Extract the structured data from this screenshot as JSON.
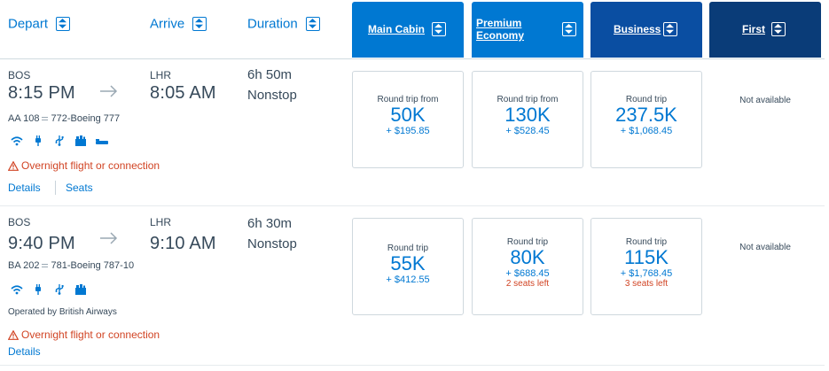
{
  "header": {
    "depart": "Depart",
    "arrive": "Arrive",
    "duration": "Duration",
    "cabins": [
      {
        "label": "Main Cabin",
        "color": "#0078d2"
      },
      {
        "label": "Premium Economy",
        "color": "#0078d2"
      },
      {
        "label": "Business",
        "color": "#0a4ea2"
      },
      {
        "label": "First",
        "color": "#0a3c78"
      }
    ]
  },
  "flights": [
    {
      "origin": "BOS",
      "depart_time": "8:15 PM",
      "destination": "LHR",
      "arrive_time": "8:05 AM",
      "duration": "6h 50m",
      "stops": "Nonstop",
      "flight_number": "AA 108",
      "aircraft": "772-Boeing 777",
      "amenities": [
        "wifi-icon",
        "power-icon",
        "usb-icon",
        "entertainment-icon",
        "lie-flat-icon"
      ],
      "warning": "Overnight flight or connection",
      "details_link": "Details",
      "seats_link": "Seats",
      "fares": [
        {
          "label": "Round trip from",
          "miles": "50K",
          "tax": "+ $195.85",
          "seats_left": ""
        },
        {
          "label": "Round trip from",
          "miles": "130K",
          "tax": "+ $528.45",
          "seats_left": ""
        },
        {
          "label": "Round trip",
          "miles": "237.5K",
          "tax": "+ $1,068.45",
          "seats_left": ""
        }
      ],
      "first": "Not available"
    },
    {
      "origin": "BOS",
      "depart_time": "9:40 PM",
      "destination": "LHR",
      "arrive_time": "9:10 AM",
      "duration": "6h 30m",
      "stops": "Nonstop",
      "flight_number": "BA 202",
      "aircraft": "781-Boeing 787-10",
      "amenities": [
        "wifi-icon",
        "power-icon",
        "usb-icon",
        "entertainment-icon"
      ],
      "operated_by": "Operated by British Airways",
      "warning": "Overnight flight or connection",
      "details_link": "Details",
      "fares": [
        {
          "label": "Round trip",
          "miles": "55K",
          "tax": "+ $412.55",
          "seats_left": ""
        },
        {
          "label": "Round trip",
          "miles": "80K",
          "tax": "+ $688.45",
          "seats_left": "2 seats left"
        },
        {
          "label": "Round trip",
          "miles": "115K",
          "tax": "+ $1,768.45",
          "seats_left": "3 seats left"
        }
      ],
      "first": "Not available"
    }
  ]
}
